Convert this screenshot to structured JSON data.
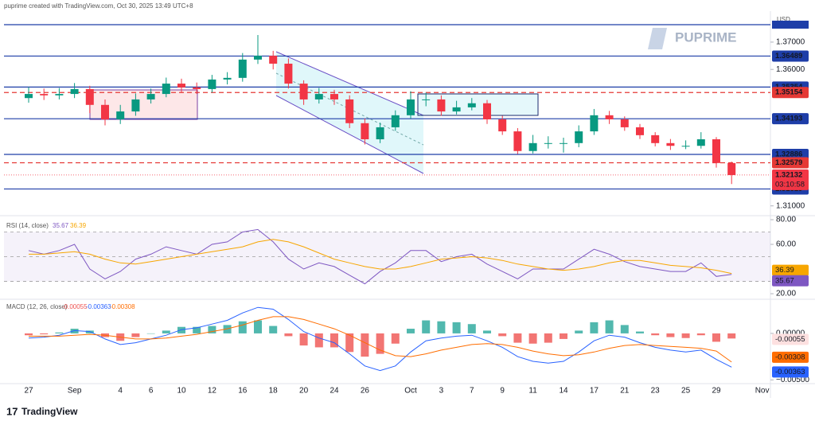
{
  "header": "puprime created with TradingView.com, Oct 30, 2025 13:49 UTC+8",
  "watermark": "PUPRIME",
  "footer": "TradingView",
  "chart_data": [
    {
      "type": "candlestick",
      "currency_label": "USD",
      "categories": [
        "27",
        null,
        null,
        "Sep",
        null,
        null,
        "4",
        null,
        "6",
        null,
        "10",
        null,
        "12",
        null,
        "16",
        null,
        "18",
        null,
        "20",
        null,
        "24",
        null,
        "26",
        null,
        null,
        "Oct",
        null,
        "3",
        null,
        "7",
        null,
        "9",
        null,
        "11",
        null,
        "14",
        null,
        "17",
        null,
        "21",
        null,
        "23",
        null,
        "25",
        null,
        "29",
        null,
        null,
        "Nov"
      ],
      "open": [
        1.3495,
        1.351,
        1.3505,
        1.351,
        1.3528,
        1.347,
        1.3417,
        1.3446,
        1.349,
        1.351,
        1.3548,
        1.3534,
        1.3528,
        1.3563,
        1.3569,
        1.3636,
        1.365,
        1.3621,
        1.3548,
        1.349,
        1.351,
        1.349,
        1.3403,
        1.3344,
        1.3388,
        1.3432,
        1.349,
        1.349,
        1.3446,
        1.3461,
        1.3476,
        1.3417,
        1.3373,
        1.3301,
        1.333,
        1.333,
        1.333,
        1.3373,
        1.3432,
        1.3417,
        1.3388,
        1.3359,
        1.333,
        1.332,
        1.332,
        1.3344,
        1.3257,
        null,
        null
      ],
      "high": [
        1.3535,
        1.353,
        1.3532,
        1.355,
        1.354,
        1.349,
        1.347,
        1.3512,
        1.353,
        1.357,
        1.3566,
        1.3552,
        1.358,
        1.359,
        1.366,
        1.3726,
        1.3668,
        1.364,
        1.356,
        1.3532,
        1.3525,
        1.3505,
        1.342,
        1.3405,
        1.345,
        1.352,
        1.3515,
        1.3505,
        1.3485,
        1.3495,
        1.3488,
        1.343,
        1.3385,
        1.336,
        1.3355,
        1.335,
        1.3395,
        1.3455,
        1.3448,
        1.3428,
        1.34,
        1.337,
        1.3345,
        1.334,
        1.337,
        1.3352,
        1.3262,
        null,
        null
      ],
      "low": [
        1.3478,
        1.3488,
        1.349,
        1.3495,
        1.344,
        1.3395,
        1.34,
        1.343,
        1.3475,
        1.3498,
        1.3515,
        1.351,
        1.3515,
        1.3545,
        1.3555,
        1.362,
        1.36,
        1.353,
        1.347,
        1.3475,
        1.347,
        1.3385,
        1.3325,
        1.333,
        1.3375,
        1.342,
        1.3465,
        1.343,
        1.3435,
        1.345,
        1.34,
        1.336,
        1.329,
        1.3292,
        1.331,
        1.3295,
        1.3315,
        1.336,
        1.34,
        1.3375,
        1.3345,
        1.3318,
        1.3305,
        1.3308,
        1.331,
        1.324,
        1.318,
        null,
        null
      ],
      "close": [
        1.351,
        1.3505,
        1.351,
        1.3528,
        1.347,
        1.3417,
        1.3446,
        1.349,
        1.351,
        1.3548,
        1.3534,
        1.3528,
        1.3563,
        1.3569,
        1.3636,
        1.365,
        1.3621,
        1.3548,
        1.349,
        1.351,
        1.349,
        1.3403,
        1.3344,
        1.3388,
        1.3432,
        1.349,
        1.349,
        1.3446,
        1.3461,
        1.3476,
        1.3417,
        1.3373,
        1.3301,
        1.333,
        1.333,
        1.333,
        1.3373,
        1.3432,
        1.3417,
        1.3388,
        1.3359,
        1.333,
        1.332,
        1.332,
        1.3344,
        1.3257,
        1.3213,
        null,
        null
      ],
      "up_color": "#089981",
      "down_color": "#f23645",
      "ylim": [
        1.3067,
        1.3796
      ],
      "yticks": [
        {
          "value": 1.37,
          "label": "1.37000"
        },
        {
          "value": 1.36,
          "label": "1.36000"
        },
        {
          "value": 1.31,
          "label": "1.31000"
        }
      ],
      "top_line": {
        "value": 1.3764,
        "color": "#1e3ea8"
      },
      "price_lines": [
        {
          "value": 1.36489,
          "color": "#1e3ea8",
          "dash": false
        },
        {
          "value": 1.35354,
          "color": "#1e3ea8",
          "dash": false
        },
        {
          "value": 1.35154,
          "color": "#e53935",
          "dash": true
        },
        {
          "value": 1.34193,
          "color": "#1e3ea8",
          "dash": false
        },
        {
          "value": 1.32886,
          "color": "#1e3ea8",
          "dash": false
        },
        {
          "value": 1.32579,
          "color": "#e53935",
          "dash": true
        },
        {
          "value": 1.31619,
          "color": "#1e3ea8",
          "dash": false
        }
      ],
      "last_price": 1.32132,
      "last_color": "#f23645",
      "countdown": "03:10:58"
    },
    {
      "type": "line",
      "title": "RSI (14, close)",
      "series": [
        {
          "color": "#7e57c2",
          "values": [
            55,
            52,
            55,
            60,
            40,
            32,
            38,
            48,
            52,
            58,
            55,
            52,
            60,
            62,
            70,
            72,
            62,
            48,
            40,
            45,
            42,
            35,
            28,
            38,
            45,
            55,
            55,
            46,
            50,
            52,
            44,
            38,
            32,
            40,
            40,
            40,
            48,
            56,
            52,
            46,
            42,
            40,
            38,
            38,
            45,
            34,
            35.67
          ]
        },
        {
          "color": "#f7a600",
          "values": [
            52,
            52,
            53,
            54,
            52,
            48,
            45,
            44,
            46,
            48,
            50,
            52,
            54,
            56,
            58,
            62,
            64,
            62,
            58,
            53,
            48,
            45,
            42,
            40,
            40,
            42,
            45,
            48,
            49,
            50,
            49,
            47,
            44,
            42,
            40,
            39,
            40,
            42,
            45,
            47,
            47,
            45,
            43,
            42,
            41,
            39,
            36.39
          ]
        }
      ],
      "bands": [
        30,
        50,
        70
      ],
      "band_color": "#7e57c2",
      "ylim": [
        16.8,
        82.6
      ],
      "yticks": [
        {
          "value": 80,
          "label": "80.00"
        },
        {
          "value": 60,
          "label": "60.00"
        },
        {
          "value": 20,
          "label": "20.00"
        }
      ]
    },
    {
      "type": "combo",
      "title": "MACD (12, 26, close)",
      "histogram": {
        "up_color": "#26a69a",
        "down_color": "#ef5350",
        "values": [
          -0.0002,
          -0.0001,
          0.0001,
          0.0005,
          0.0003,
          -0.0004,
          -0.0008,
          -0.0004,
          0,
          0.0003,
          0.0007,
          0.0007,
          0.0008,
          0.0009,
          0.0013,
          0.0014,
          0.0008,
          -0.0003,
          -0.0013,
          -0.0015,
          -0.0015,
          -0.002,
          -0.0025,
          -0.0022,
          -0.0011,
          0.0005,
          0.0014,
          0.0013,
          0.0012,
          0.001,
          0.0003,
          -0.0003,
          -0.001,
          -0.0011,
          -0.001,
          -0.0006,
          0.0003,
          0.0012,
          0.0014,
          0.0009,
          0.0002,
          -0.0002,
          -0.0004,
          -0.0005,
          -0.0002,
          -0.0009,
          -0.00055
        ]
      },
      "series": [
        {
          "color": "#2962ff",
          "values": [
            -0.0005,
            -0.0004,
            -0.0002,
            0.0003,
            0.0002,
            -0.0006,
            -0.0012,
            -0.001,
            -0.0006,
            -0.0002,
            0.0004,
            0.0006,
            0.001,
            0.0014,
            0.0022,
            0.0028,
            0.0026,
            0.0015,
            0.0002,
            -0.0005,
            -0.001,
            -0.0022,
            -0.0035,
            -0.004,
            -0.0035,
            -0.002,
            -0.0008,
            -0.0005,
            -0.0003,
            -0.0002,
            -0.0008,
            -0.0015,
            -0.0025,
            -0.003,
            -0.0032,
            -0.003,
            -0.002,
            -0.0008,
            -0.0002,
            -0.0004,
            -0.001,
            -0.0015,
            -0.0018,
            -0.002,
            -0.0018,
            -0.0028,
            -0.00363
          ]
        },
        {
          "color": "#ff6d00",
          "values": [
            -0.0003,
            -0.0003,
            -0.0003,
            -0.0002,
            -0.0001,
            -0.0002,
            -0.0004,
            -0.0006,
            -0.0006,
            -0.0005,
            -0.0003,
            -0.0001,
            0.0002,
            0.0005,
            0.0009,
            0.0014,
            0.0018,
            0.0018,
            0.0015,
            0.001,
            0.0005,
            -0.0002,
            -0.001,
            -0.0018,
            -0.0024,
            -0.0025,
            -0.0022,
            -0.0018,
            -0.0015,
            -0.0012,
            -0.0011,
            -0.0012,
            -0.0015,
            -0.0019,
            -0.0022,
            -0.0024,
            -0.0023,
            -0.002,
            -0.0016,
            -0.0013,
            -0.0012,
            -0.0013,
            -0.0014,
            -0.0015,
            -0.0016,
            -0.0019,
            -0.00308
          ]
        }
      ],
      "ylim": [
        -0.0054,
        0.0035
      ],
      "yticks": [
        {
          "value": 0,
          "label": "0.00000"
        },
        {
          "value": -0.005,
          "label": "−0.00500"
        }
      ]
    }
  ]
}
